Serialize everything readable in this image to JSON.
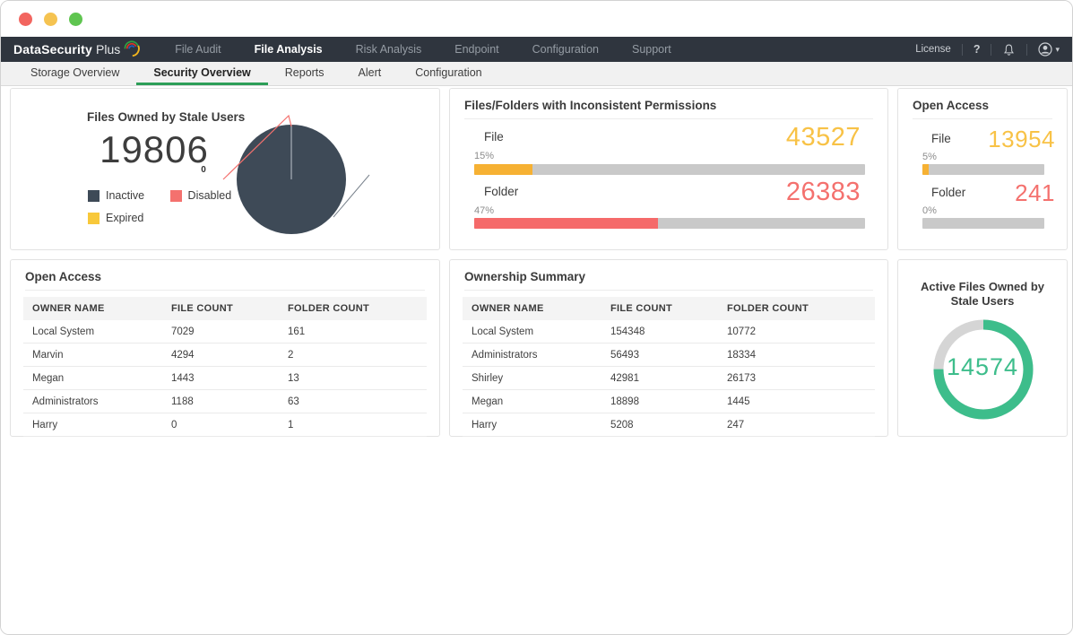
{
  "theme": {
    "navbar_bg": "#2f353e",
    "accent_yellow": "#f8c246",
    "accent_red": "#f4716e",
    "accent_green": "#3dbd8b",
    "tab_active_green": "#2d9e58",
    "slate": "#3e4a57",
    "bar_track": "#c9c9c9"
  },
  "titlebar": {
    "buttons": [
      "close",
      "minimize",
      "maximize"
    ]
  },
  "navbar": {
    "brand_bold": "DataSecurity",
    "brand_light": "Plus",
    "items": [
      {
        "label": "File Audit",
        "active": false
      },
      {
        "label": "File Analysis",
        "active": true
      },
      {
        "label": "Risk Analysis",
        "active": false
      },
      {
        "label": "Endpoint",
        "active": false
      },
      {
        "label": "Configuration",
        "active": false
      },
      {
        "label": "Support",
        "active": false
      }
    ],
    "license_label": "License",
    "help_label": "?",
    "icons": [
      "bell-icon",
      "user-avatar-icon",
      "chevron-down-icon"
    ]
  },
  "tabbar": {
    "tabs": [
      {
        "label": "Storage Overview",
        "active": false
      },
      {
        "label": "Security Overview",
        "active": true
      },
      {
        "label": "Reports",
        "active": false
      },
      {
        "label": "Alert",
        "active": false
      },
      {
        "label": "Configuration",
        "active": false
      }
    ]
  },
  "cards": {
    "stale_users_card": {
      "title": "Files Owned by Stale Users",
      "total": "19806",
      "zero_label": "0",
      "legend": [
        {
          "label": "Inactive",
          "color": "#3e4a57"
        },
        {
          "label": "Disabled",
          "color": "#f4716e"
        },
        {
          "label": "Expired",
          "color": "#f8c83a"
        }
      ]
    },
    "inconsistent_card": {
      "title": "Files/Folders with Inconsistent Permissions",
      "rows": [
        {
          "label": "File",
          "value": "43527",
          "percent": "15%"
        },
        {
          "label": "Folder",
          "value": "26383",
          "percent": "47%"
        }
      ]
    },
    "open_access_card": {
      "title": "Open Access",
      "rows": [
        {
          "label": "File",
          "value": "13954",
          "percent": "5%"
        },
        {
          "label": "Folder",
          "value": "241",
          "percent": "0%"
        }
      ]
    },
    "open_access_table": {
      "title": "Open Access",
      "headers": [
        "OWNER NAME",
        "FILE COUNT",
        "FOLDER COUNT"
      ],
      "rows": [
        [
          "Local System",
          "7029",
          "161"
        ],
        [
          "Marvin",
          "4294",
          "2"
        ],
        [
          "Megan",
          "1443",
          "13"
        ],
        [
          "Administrators",
          "1188",
          "63"
        ],
        [
          "Harry",
          "0",
          "1"
        ]
      ]
    },
    "ownership_table": {
      "title": "Ownership Summary",
      "headers": [
        "OWNER NAME",
        "FILE COUNT",
        "FOLDER COUNT"
      ],
      "rows": [
        [
          "Local System",
          "154348",
          "10772"
        ],
        [
          "Administrators",
          "56493",
          "18334"
        ],
        [
          "Shirley",
          "42981",
          "26173"
        ],
        [
          "Megan",
          "18898",
          "1445"
        ],
        [
          "Harry",
          "5208",
          "247"
        ]
      ]
    },
    "active_files_card": {
      "title_line1": "Active Files Owned by",
      "title_line2": "Stale Users",
      "value": "14574"
    }
  },
  "chart_data": [
    {
      "type": "pie",
      "title": "Files Owned by Stale Users",
      "categories": [
        "Inactive",
        "Disabled",
        "Expired"
      ],
      "values": [
        19806,
        0,
        0
      ],
      "colors": [
        "#3e4a57",
        "#f4716e",
        "#f8c83a"
      ],
      "total": 19806,
      "legend_position": "left"
    },
    {
      "type": "bar",
      "title": "Files/Folders with Inconsistent Permissions",
      "categories": [
        "File",
        "Folder"
      ],
      "values": [
        43527,
        26383
      ],
      "percents": [
        15,
        47
      ],
      "colors": [
        "#f6b133",
        "#f56a6a"
      ]
    },
    {
      "type": "bar",
      "title": "Open Access",
      "categories": [
        "File",
        "Folder"
      ],
      "values": [
        13954,
        241
      ],
      "percents": [
        5,
        0
      ],
      "colors": [
        "#f6b133",
        "#f56a6a"
      ]
    },
    {
      "type": "table",
      "title": "Open Access",
      "columns": [
        "OWNER NAME",
        "FILE COUNT",
        "FOLDER COUNT"
      ],
      "rows": [
        [
          "Local System",
          7029,
          161
        ],
        [
          "Marvin",
          4294,
          2
        ],
        [
          "Megan",
          1443,
          13
        ],
        [
          "Administrators",
          1188,
          63
        ],
        [
          "Harry",
          0,
          1
        ]
      ]
    },
    {
      "type": "table",
      "title": "Ownership Summary",
      "columns": [
        "OWNER NAME",
        "FILE COUNT",
        "FOLDER COUNT"
      ],
      "rows": [
        [
          "Local System",
          154348,
          10772
        ],
        [
          "Administrators",
          56493,
          18334
        ],
        [
          "Shirley",
          42981,
          26173
        ],
        [
          "Megan",
          18898,
          1445
        ],
        [
          "Harry",
          5208,
          247
        ]
      ]
    },
    {
      "type": "donut",
      "title": "Active Files Owned by Stale Users",
      "value": 14574,
      "fraction": 0.75,
      "color": "#3dbd8b",
      "track_color": "#d5d5d5"
    }
  ]
}
